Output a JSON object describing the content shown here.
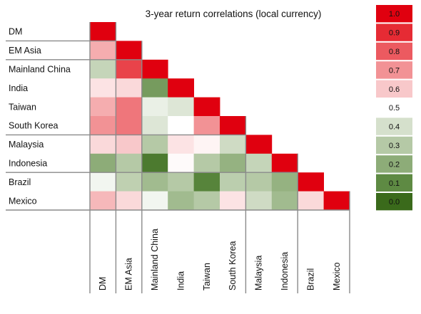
{
  "chart_data": {
    "type": "heatmap",
    "title": "3-year return correlations (local currency)",
    "row_labels": [
      "DM",
      "EM Asia",
      "Mainland China",
      "India",
      "Taiwan",
      "South Korea",
      "Malaysia",
      "Indonesia",
      "Brazil",
      "Mexico"
    ],
    "col_labels": [
      "DM",
      "EM Asia",
      "Mainland China",
      "India",
      "Taiwan",
      "South Korea",
      "Malaysia",
      "Indonesia",
      "Brazil",
      "Mexico"
    ],
    "values": [
      [
        1.0
      ],
      [
        0.65,
        1.0
      ],
      [
        0.35,
        0.85,
        1.0
      ],
      [
        0.55,
        0.57,
        0.15,
        1.0
      ],
      [
        0.65,
        0.75,
        0.45,
        0.42,
        1.0
      ],
      [
        0.7,
        0.75,
        0.42,
        0.5,
        0.7,
        1.0
      ],
      [
        0.57,
        0.6,
        0.3,
        0.55,
        0.52,
        0.38,
        1.0
      ],
      [
        0.2,
        0.3,
        0.05,
        0.51,
        0.3,
        0.22,
        0.35,
        1.0
      ],
      [
        0.47,
        0.33,
        0.25,
        0.3,
        0.08,
        0.32,
        0.3,
        0.22,
        1.0
      ],
      [
        0.63,
        0.57,
        0.47,
        0.25,
        0.3,
        0.55,
        0.38,
        0.25,
        0.57,
        1.0
      ]
    ],
    "group_breaks": [
      1,
      2,
      6,
      8
    ],
    "colorscale": {
      "levels": [
        {
          "label": "1.0",
          "value": 1.0,
          "color": "#e0000f"
        },
        {
          "label": "0.9",
          "value": 0.9,
          "color": "#e62b34"
        },
        {
          "label": "0.8",
          "value": 0.8,
          "color": "#ec5a60"
        },
        {
          "label": "0.7",
          "value": 0.7,
          "color": "#f29295"
        },
        {
          "label": "0.6",
          "value": 0.6,
          "color": "#f8c8ca"
        },
        {
          "label": "0.5",
          "value": 0.5,
          "color": "#ffffff"
        },
        {
          "label": "0.4",
          "value": 0.4,
          "color": "#d5e0cc"
        },
        {
          "label": "0.3",
          "value": 0.3,
          "color": "#b5c9a6"
        },
        {
          "label": "0.2",
          "value": 0.2,
          "color": "#8dac78"
        },
        {
          "label": "0.1",
          "value": 0.1,
          "color": "#5e8a43"
        },
        {
          "label": "0.0",
          "value": 0.0,
          "color": "#3a6a1b"
        }
      ]
    }
  }
}
